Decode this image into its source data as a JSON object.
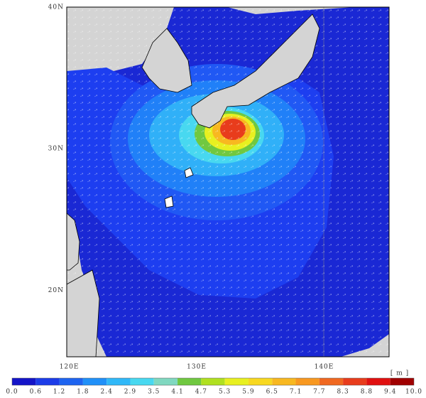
{
  "map": {
    "xlim": [
      119.8,
      145.1
    ],
    "ylim": [
      15.3,
      40
    ],
    "lat_labels": [
      {
        "value": 40,
        "label": "40N"
      },
      {
        "value": 30,
        "label": "30N"
      },
      {
        "value": 20,
        "label": "20N"
      }
    ],
    "lon_labels": [
      {
        "value": 120,
        "label": "120E"
      },
      {
        "value": 130,
        "label": "130E"
      },
      {
        "value": 140,
        "label": "140E"
      }
    ]
  },
  "colorbar": {
    "unit": "[ m ]",
    "ticks": [
      {
        "value": 0,
        "label": "0.0"
      },
      0.6,
      1.2,
      1.8,
      2.4,
      2.9,
      3.5,
      4.1,
      4.7,
      5.3,
      5.9,
      6.5,
      7.1,
      7.7,
      8.3,
      8.8,
      9.4,
      {
        "value": 10,
        "label": "10.0"
      }
    ],
    "colors": [
      "#1414c8",
      "#1c3ce8",
      "#1e64f0",
      "#2090f8",
      "#30b8f8",
      "#48d8f0",
      "#80d8c0",
      "#70c840",
      "#b0e020",
      "#e8f020",
      "#f8d820",
      "#f8b820",
      "#f89820",
      "#f06820",
      "#e83c1c",
      "#e01010",
      "#a00000"
    ]
  }
}
